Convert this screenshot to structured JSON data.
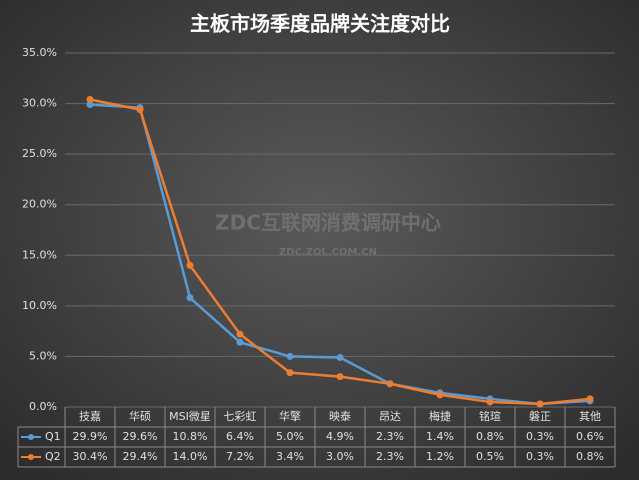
{
  "chart_data": {
    "type": "line",
    "title": "主板市场季度品牌关注度对比",
    "watermark": [
      "ZDC互联网消费调研中心",
      "ZDC.ZOL.COM.CN"
    ],
    "categories": [
      "技嘉",
      "华硕",
      "MSI微星",
      "七彩虹",
      "华擎",
      "映泰",
      "昂达",
      "梅捷",
      "铭瑄",
      "磐正",
      "其他"
    ],
    "series": [
      {
        "name": "Q1",
        "color": "#5b9bd5",
        "values": [
          29.9,
          29.6,
          10.8,
          6.4,
          5.0,
          4.9,
          2.3,
          1.4,
          0.8,
          0.3,
          0.6
        ],
        "value_labels": [
          "29.9%",
          "29.6%",
          "10.8%",
          "6.4%",
          "5.0%",
          "4.9%",
          "2.3%",
          "1.4%",
          "0.8%",
          "0.3%",
          "0.6%"
        ]
      },
      {
        "name": "Q2",
        "color": "#ed7d31",
        "values": [
          30.4,
          29.4,
          14.0,
          7.2,
          3.4,
          3.0,
          2.3,
          1.2,
          0.5,
          0.3,
          0.8
        ],
        "value_labels": [
          "30.4%",
          "29.4%",
          "14.0%",
          "7.2%",
          "3.4%",
          "3.0%",
          "2.3%",
          "1.2%",
          "0.5%",
          "0.3%",
          "0.8%"
        ]
      }
    ],
    "ylim": [
      0,
      35
    ],
    "yticks": [
      {
        "value": 0,
        "label": "0.0%"
      },
      {
        "value": 5,
        "label": "5.0%"
      },
      {
        "value": 10,
        "label": "10.0%"
      },
      {
        "value": 15,
        "label": "15.0%"
      },
      {
        "value": 20,
        "label": "20.0%"
      },
      {
        "value": 25,
        "label": "25.0%"
      },
      {
        "value": 30,
        "label": "30.0%"
      },
      {
        "value": 35,
        "label": "35.0%"
      }
    ],
    "grid": true
  }
}
